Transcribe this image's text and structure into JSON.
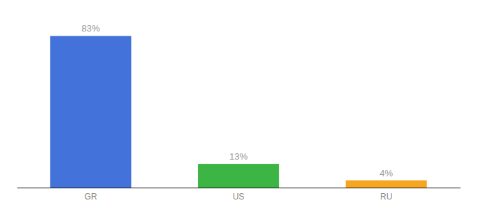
{
  "chart_data": {
    "type": "bar",
    "categories": [
      "GR",
      "US",
      "RU"
    ],
    "values": [
      83,
      13,
      4
    ],
    "value_labels": [
      "83%",
      "13%",
      "4%"
    ],
    "colors": [
      "#4472db",
      "#3cb544",
      "#f5a623"
    ],
    "ylim": [
      0,
      95
    ],
    "data_labels": true,
    "tick_labels": "x",
    "grid": false
  }
}
